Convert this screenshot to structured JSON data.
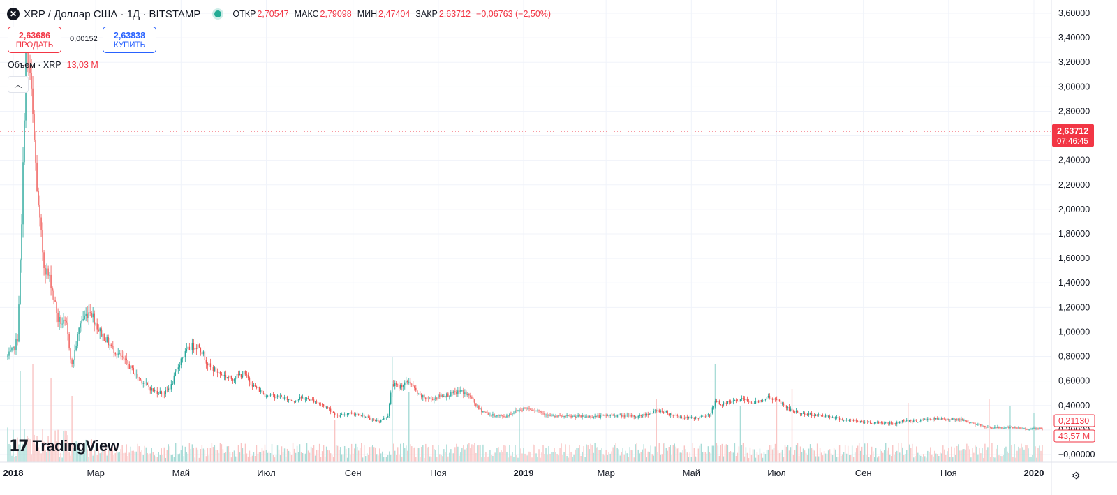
{
  "header": {
    "symbol_icon": "close-x-icon",
    "symbol_glyph": "✕",
    "title": "XRP / Доллар США · 1Д · BITSTAMP",
    "ohlc": [
      {
        "label": "ОТКР",
        "value": "2,70547"
      },
      {
        "label": "МАКС",
        "value": "2,79098"
      },
      {
        "label": "МИН",
        "value": "2,47404"
      },
      {
        "label": "ЗАКР",
        "value": "2,63712"
      }
    ],
    "change": "−0,06763 (−2,50%)"
  },
  "trade": {
    "sell_price": "2,63686",
    "sell_label": "ПРОДАТЬ",
    "spread": "0,00152",
    "buy_price": "2,63838",
    "buy_label": "КУПИТЬ"
  },
  "volume_indicator": {
    "label": "Объем · XRP",
    "value": "13,03 M"
  },
  "collapse_icon": "chevron-up-icon",
  "collapse_glyph": "︿",
  "logo_text": "TradingView",
  "logo_mark": "17",
  "settings_glyph": "⚙",
  "colors": {
    "up": "#26a69a",
    "down": "#ef5350",
    "vol_up": "#a9dcd7",
    "vol_down": "#f9c5c4",
    "accent_red": "#f23645",
    "accent_blue": "#2962ff",
    "grid": "#f0f3fa"
  },
  "chart_data": {
    "type": "candlestick",
    "price_axis": {
      "min": 0,
      "max": 3.6,
      "tick_values": [
        0,
        0.2,
        0.4,
        0.6,
        0.8,
        1.0,
        1.2,
        1.4,
        1.6,
        1.8,
        2.0,
        2.2,
        2.4,
        2.6,
        2.8,
        3.0,
        3.2,
        3.4,
        3.6
      ],
      "tick_labels": [
        "−0,00000",
        "0,20000",
        "0,40000",
        "0,60000",
        "0,80000",
        "1,00000",
        "1,20000",
        "1,40000",
        "1,60000",
        "1,80000",
        "2,00000",
        "2,20000",
        "2,40000",
        "2,60000",
        "2,80000",
        "3,00000",
        "3,20000",
        "3,40000",
        "3,60000"
      ]
    },
    "last_price": {
      "value": 2.63712,
      "label": "2,63712",
      "countdown": "07:46:45"
    },
    "axis_badges": [
      {
        "value": 0.2113,
        "label": "0,21130"
      },
      {
        "value": 0.1,
        "label": "43,57 M"
      }
    ],
    "time_axis": {
      "start_day": 0,
      "end_day": 736,
      "ticks": [
        {
          "label": "2018",
          "day": 0,
          "bold": true
        },
        {
          "label": "Мар",
          "day": 59
        },
        {
          "label": "Май",
          "day": 120
        },
        {
          "label": "Июл",
          "day": 181
        },
        {
          "label": "Сен",
          "day": 243
        },
        {
          "label": "Ноя",
          "day": 304
        },
        {
          "label": "2019",
          "day": 365,
          "bold": true
        },
        {
          "label": "Мар",
          "day": 424
        },
        {
          "label": "Май",
          "day": 485
        },
        {
          "label": "Июл",
          "day": 546
        },
        {
          "label": "Сен",
          "day": 608
        },
        {
          "label": "Ноя",
          "day": 669
        },
        {
          "label": "2020",
          "day": 730,
          "bold": true
        }
      ]
    },
    "price_path": [
      [
        -4,
        0.8
      ],
      [
        0,
        0.85
      ],
      [
        3,
        0.95
      ],
      [
        6,
        1.85
      ],
      [
        9,
        3.3
      ],
      [
        12,
        3.1
      ],
      [
        15,
        2.55
      ],
      [
        18,
        2.0
      ],
      [
        22,
        1.55
      ],
      [
        27,
        1.4
      ],
      [
        32,
        1.1
      ],
      [
        38,
        1.05
      ],
      [
        42,
        0.72
      ],
      [
        48,
        1.08
      ],
      [
        55,
        1.18
      ],
      [
        61,
        1.02
      ],
      [
        70,
        0.88
      ],
      [
        80,
        0.76
      ],
      [
        90,
        0.62
      ],
      [
        100,
        0.52
      ],
      [
        108,
        0.5
      ],
      [
        113,
        0.56
      ],
      [
        120,
        0.78
      ],
      [
        127,
        0.88
      ],
      [
        133,
        0.89
      ],
      [
        140,
        0.72
      ],
      [
        148,
        0.66
      ],
      [
        156,
        0.62
      ],
      [
        165,
        0.66
      ],
      [
        172,
        0.56
      ],
      [
        180,
        0.49
      ],
      [
        190,
        0.47
      ],
      [
        200,
        0.44
      ],
      [
        207,
        0.46
      ],
      [
        215,
        0.44
      ],
      [
        225,
        0.38
      ],
      [
        232,
        0.31
      ],
      [
        240,
        0.34
      ],
      [
        248,
        0.33
      ],
      [
        255,
        0.29
      ],
      [
        262,
        0.27
      ],
      [
        268,
        0.32
      ],
      [
        271,
        0.58
      ],
      [
        276,
        0.55
      ],
      [
        283,
        0.6
      ],
      [
        290,
        0.48
      ],
      [
        298,
        0.45
      ],
      [
        306,
        0.48
      ],
      [
        313,
        0.49
      ],
      [
        320,
        0.52
      ],
      [
        327,
        0.47
      ],
      [
        333,
        0.37
      ],
      [
        342,
        0.32
      ],
      [
        352,
        0.31
      ],
      [
        360,
        0.36
      ],
      [
        367,
        0.38
      ],
      [
        375,
        0.36
      ],
      [
        385,
        0.31
      ],
      [
        400,
        0.31
      ],
      [
        415,
        0.31
      ],
      [
        430,
        0.32
      ],
      [
        447,
        0.31
      ],
      [
        462,
        0.36
      ],
      [
        470,
        0.33
      ],
      [
        480,
        0.3
      ],
      [
        490,
        0.3
      ],
      [
        498,
        0.32
      ],
      [
        502,
        0.43
      ],
      [
        508,
        0.41
      ],
      [
        515,
        0.43
      ],
      [
        522,
        0.45
      ],
      [
        530,
        0.42
      ],
      [
        540,
        0.47
      ],
      [
        548,
        0.43
      ],
      [
        556,
        0.36
      ],
      [
        565,
        0.33
      ],
      [
        575,
        0.32
      ],
      [
        585,
        0.31
      ],
      [
        595,
        0.28
      ],
      [
        605,
        0.27
      ],
      [
        615,
        0.26
      ],
      [
        622,
        0.26
      ],
      [
        630,
        0.25
      ],
      [
        638,
        0.28
      ],
      [
        645,
        0.27
      ],
      [
        655,
        0.29
      ],
      [
        665,
        0.29
      ],
      [
        672,
        0.29
      ],
      [
        680,
        0.28
      ],
      [
        690,
        0.24
      ],
      [
        700,
        0.22
      ],
      [
        712,
        0.22
      ],
      [
        725,
        0.21
      ],
      [
        735,
        0.21
      ]
    ],
    "volume_scale_max_millions": 150,
    "volume_spikes": [
      {
        "day": 5,
        "millions": 130
      },
      {
        "day": 14,
        "millions": 140
      },
      {
        "day": 27,
        "millions": 120
      },
      {
        "day": 42,
        "millions": 95
      },
      {
        "day": 230,
        "millions": 60
      },
      {
        "day": 271,
        "millions": 150
      },
      {
        "day": 283,
        "millions": 100
      },
      {
        "day": 362,
        "millions": 75
      },
      {
        "day": 460,
        "millions": 90
      },
      {
        "day": 502,
        "millions": 140
      },
      {
        "day": 520,
        "millions": 80
      },
      {
        "day": 546,
        "millions": 95
      },
      {
        "day": 557,
        "millions": 105
      },
      {
        "day": 640,
        "millions": 85
      },
      {
        "day": 698,
        "millions": 90
      },
      {
        "day": 713,
        "millions": 80
      },
      {
        "day": 730,
        "millions": 70
      }
    ]
  }
}
